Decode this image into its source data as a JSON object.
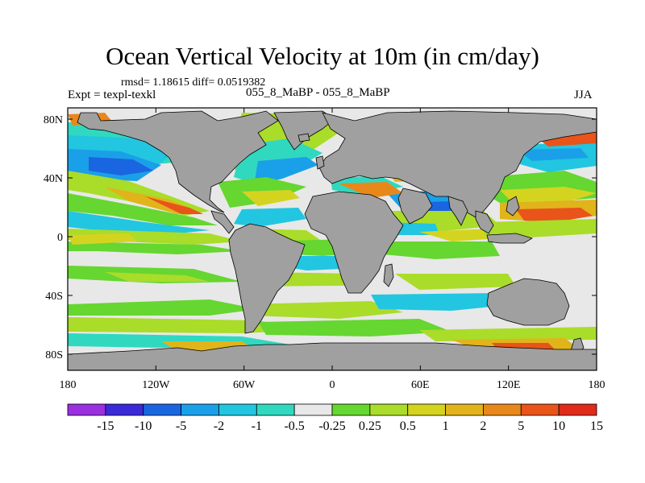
{
  "title": "Ocean Vertical Velocity at 10m (in cm/day)",
  "stats": "rmsd= 1.18615 diff= 0.0519382",
  "expt_label": "Expt = texpl-texkl",
  "experiment": "055_8_MaBP - 055_8_MaBP",
  "season": "JJA",
  "colors": {
    "land": "#a0a0a0",
    "background_ocean": "#e8e8e8",
    "frame": "#000000"
  },
  "map": {
    "lat_ticks": [
      "80N",
      "40N",
      "0",
      "40S",
      "80S"
    ],
    "lat_values": [
      80,
      40,
      0,
      -40,
      -80
    ],
    "lon_ticks": [
      "180",
      "120W",
      "60W",
      "0",
      "60E",
      "120E",
      "180"
    ],
    "lon_values": [
      -180,
      -120,
      -60,
      0,
      60,
      120,
      180
    ]
  },
  "colorbar": {
    "colors": [
      "#9a30e0",
      "#3a2ad8",
      "#1a66e0",
      "#1aa0e8",
      "#22c6e0",
      "#30d8c0",
      "#e8e8e8",
      "#66d630",
      "#aadc2a",
      "#d4d420",
      "#e0b41a",
      "#e8881a",
      "#e8541a",
      "#e02a1a"
    ],
    "labels": [
      "-15",
      "-10",
      "-5",
      "-2",
      "-1",
      "-0.5",
      "-0.25",
      "0.25",
      "0.5",
      "1",
      "2",
      "5",
      "10",
      "15"
    ]
  }
}
